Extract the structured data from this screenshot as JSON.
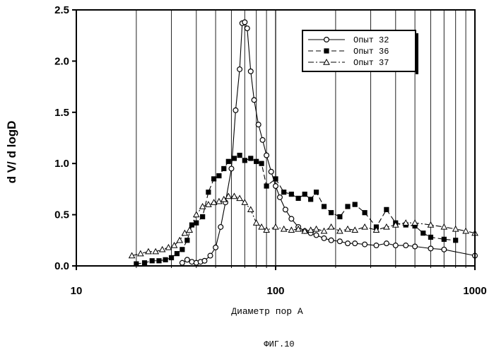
{
  "figure": {
    "caption": "ФИГ.10"
  },
  "chart_data": {
    "type": "line",
    "xlabel": "Диаметр пор А",
    "ylabel": "d V/ d logD",
    "x_scale": "log",
    "xlim": [
      10,
      1000
    ],
    "ylim": [
      0,
      2.5
    ],
    "x_ticks": [
      10,
      100,
      1000
    ],
    "x_tick_labels": [
      "10",
      "100",
      "1000"
    ],
    "y_ticks": [
      0,
      0.5,
      1,
      1.5,
      2,
      2.5
    ],
    "y_tick_labels": [
      "0.0",
      "0.5",
      "1.0",
      "1.5",
      "2.0",
      "2.5"
    ],
    "grid": "vertical log gridlines",
    "legend_position": "top-right",
    "series": [
      {
        "name": "Опыт 32",
        "marker": "circle",
        "line": "solid",
        "x": [
          34,
          36,
          38,
          40,
          42,
          44,
          47,
          50,
          53,
          56,
          60,
          63,
          66,
          68,
          70,
          72,
          75,
          78,
          82,
          86,
          90,
          95,
          100,
          105,
          112,
          120,
          130,
          140,
          150,
          160,
          175,
          190,
          210,
          230,
          250,
          280,
          320,
          360,
          400,
          450,
          500,
          600,
          700,
          1000
        ],
        "y": [
          0.03,
          0.06,
          0.04,
          0.03,
          0.04,
          0.05,
          0.1,
          0.18,
          0.38,
          0.62,
          0.95,
          1.52,
          1.92,
          2.37,
          2.38,
          2.32,
          1.9,
          1.62,
          1.38,
          1.23,
          1.08,
          0.92,
          0.78,
          0.67,
          0.55,
          0.46,
          0.38,
          0.34,
          0.32,
          0.3,
          0.27,
          0.25,
          0.24,
          0.22,
          0.22,
          0.21,
          0.2,
          0.22,
          0.2,
          0.2,
          0.19,
          0.17,
          0.16,
          0.1
        ]
      },
      {
        "name": "Опыт 36",
        "marker": "filled-square",
        "line": "dashed",
        "x": [
          20,
          22,
          24,
          26,
          28,
          30,
          32,
          34,
          36,
          38,
          40,
          43,
          46,
          49,
          52,
          55,
          58,
          62,
          66,
          70,
          75,
          80,
          85,
          90,
          100,
          110,
          120,
          130,
          140,
          150,
          160,
          175,
          190,
          210,
          230,
          250,
          280,
          320,
          360,
          400,
          450,
          500,
          550,
          600,
          700,
          800
        ],
        "y": [
          0.02,
          0.03,
          0.05,
          0.05,
          0.06,
          0.08,
          0.12,
          0.16,
          0.25,
          0.4,
          0.42,
          0.48,
          0.72,
          0.85,
          0.88,
          0.95,
          1.02,
          1.05,
          1.08,
          1.03,
          1.05,
          1.02,
          1.0,
          0.78,
          0.85,
          0.72,
          0.7,
          0.66,
          0.7,
          0.65,
          0.72,
          0.58,
          0.52,
          0.48,
          0.58,
          0.6,
          0.52,
          0.38,
          0.55,
          0.42,
          0.4,
          0.39,
          0.32,
          0.28,
          0.26,
          0.25
        ]
      },
      {
        "name": "Опыт 37",
        "marker": "triangle",
        "line": "dash-dot",
        "x": [
          19,
          21,
          23,
          25,
          27,
          29,
          31,
          33,
          35,
          37,
          40,
          43,
          46,
          49,
          52,
          55,
          58,
          62,
          66,
          70,
          75,
          80,
          85,
          90,
          100,
          110,
          120,
          130,
          140,
          150,
          160,
          175,
          190,
          210,
          230,
          250,
          280,
          320,
          360,
          400,
          450,
          500,
          600,
          700,
          800,
          900,
          1000
        ],
        "y": [
          0.1,
          0.12,
          0.14,
          0.14,
          0.16,
          0.18,
          0.2,
          0.25,
          0.32,
          0.35,
          0.5,
          0.58,
          0.6,
          0.62,
          0.63,
          0.65,
          0.68,
          0.68,
          0.66,
          0.62,
          0.55,
          0.42,
          0.38,
          0.35,
          0.38,
          0.36,
          0.35,
          0.36,
          0.34,
          0.35,
          0.36,
          0.34,
          0.38,
          0.34,
          0.36,
          0.35,
          0.38,
          0.35,
          0.38,
          0.4,
          0.42,
          0.42,
          0.4,
          0.38,
          0.36,
          0.34,
          0.32
        ]
      }
    ]
  }
}
